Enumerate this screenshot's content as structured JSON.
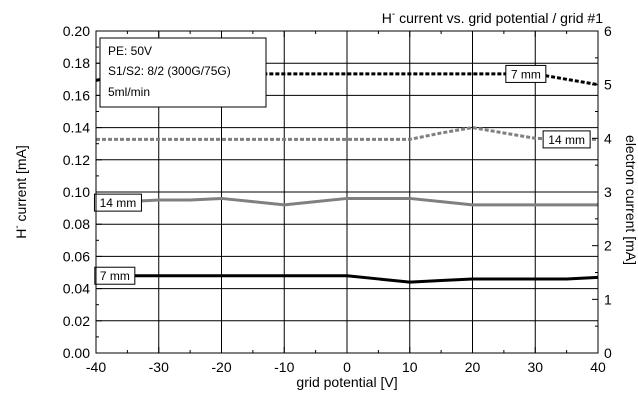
{
  "chart_data": {
    "type": "line",
    "title": "H- current vs. grid potential / grid #1",
    "title_main": "H",
    "title_sup": "-",
    "title_rest": " current vs. grid potential / grid #1",
    "xlabel": "grid potential [V]",
    "ylabel": "H- current [mA]",
    "ylabel_main": "H",
    "ylabel_sup": "-",
    "ylabel_rest": " current [mA]",
    "y2label": "electron current [mA]",
    "xlim": [
      -40,
      40
    ],
    "ylim": [
      0.0,
      0.2
    ],
    "y2lim": [
      0,
      6
    ],
    "grid": true,
    "x_ticks": [
      "-40",
      "-30",
      "-20",
      "-10",
      "0",
      "10",
      "20",
      "30",
      "40"
    ],
    "y_ticks": [
      "0.00",
      "0.02",
      "0.04",
      "0.06",
      "0.08",
      "0.10",
      "0.12",
      "0.14",
      "0.16",
      "0.18",
      "0.20"
    ],
    "y2_ticks": [
      "0",
      "1",
      "2",
      "3",
      "4",
      "5",
      "6"
    ],
    "info_box": [
      "PE: 50V",
      "S1/S2: 8/2 (300G/75G)",
      "5ml/min"
    ],
    "series": [
      {
        "name": "7 mm",
        "axis": "right",
        "style": "dashed",
        "color": "#000000",
        "x": [
          -40,
          -35,
          -30,
          -25,
          -20,
          -15,
          -10,
          -5,
          0,
          5,
          10,
          15,
          20,
          25,
          30,
          35,
          40
        ],
        "y": [
          5.08,
          5.2,
          5.2,
          5.2,
          5.2,
          5.2,
          5.2,
          5.2,
          5.2,
          5.2,
          5.2,
          5.2,
          5.2,
          5.2,
          5.2,
          5.1,
          5.0
        ]
      },
      {
        "name": "14 mm",
        "axis": "right",
        "style": "dashed",
        "color": "#808080",
        "x": [
          -40,
          -35,
          -30,
          -25,
          -20,
          -15,
          -10,
          -5,
          0,
          5,
          10,
          15,
          20,
          25,
          30,
          35,
          40
        ],
        "y": [
          3.98,
          3.98,
          3.98,
          3.98,
          3.98,
          3.98,
          3.98,
          3.98,
          3.98,
          3.98,
          3.98,
          4.1,
          4.2,
          4.1,
          4.0,
          3.98,
          3.98
        ]
      },
      {
        "name": "14 mm",
        "axis": "left",
        "style": "solid",
        "color": "#808080",
        "x": [
          -40,
          -35,
          -30,
          -25,
          -20,
          -15,
          -10,
          -5,
          0,
          5,
          10,
          15,
          20,
          25,
          30,
          35,
          40
        ],
        "y": [
          0.092,
          0.094,
          0.095,
          0.095,
          0.096,
          0.094,
          0.092,
          0.094,
          0.096,
          0.096,
          0.096,
          0.094,
          0.092,
          0.092,
          0.092,
          0.092,
          0.092
        ]
      },
      {
        "name": "7 mm",
        "axis": "left",
        "style": "solid",
        "color": "#000000",
        "x": [
          -40,
          -35,
          -30,
          -25,
          -20,
          -15,
          -10,
          -5,
          0,
          5,
          10,
          15,
          20,
          25,
          30,
          35,
          40
        ],
        "y": [
          0.048,
          0.048,
          0.048,
          0.048,
          0.048,
          0.048,
          0.048,
          0.048,
          0.048,
          0.046,
          0.044,
          0.045,
          0.046,
          0.046,
          0.046,
          0.046,
          0.047
        ]
      }
    ],
    "series_label_positions": [
      {
        "series": 0,
        "x": 28.5
      },
      {
        "series": 1,
        "x": 35.0
      },
      {
        "series": 2,
        "x": -36.5
      },
      {
        "series": 3,
        "x": -37.0
      }
    ]
  }
}
